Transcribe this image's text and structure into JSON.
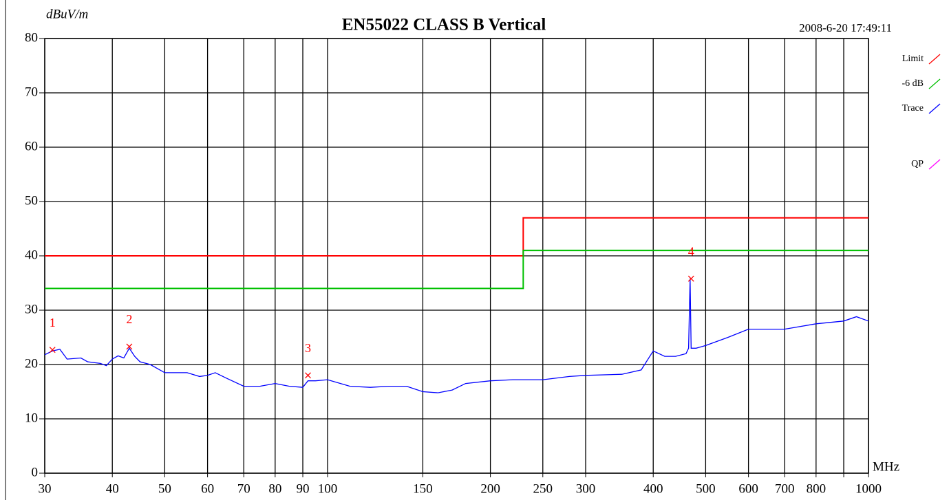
{
  "chart_data": {
    "type": "line",
    "title": "EN55022 CLASS B  Vertical",
    "y_label": "dBuV/m",
    "x_label": "MHz",
    "timestamp": "2008-6-20 17:49:11",
    "x_scale": "log",
    "grid": true,
    "xlim": [
      30,
      1000
    ],
    "ylim": [
      0,
      80
    ],
    "yticks": [
      0,
      10,
      20,
      30,
      40,
      50,
      60,
      70,
      80
    ],
    "xticks": [
      30,
      40,
      50,
      60,
      70,
      80,
      90,
      100,
      150,
      200,
      250,
      300,
      400,
      500,
      600,
      700,
      800,
      {
        "value": 900,
        "label": null
      },
      1000
    ],
    "series": [
      {
        "name": "Limit",
        "color": "#ff0000",
        "x": [
          30,
          230,
          230,
          1000
        ],
        "values": [
          40,
          40,
          47,
          47
        ]
      },
      {
        "name": "-6 dB",
        "color": "#00c000",
        "x": [
          30,
          230,
          230,
          1000
        ],
        "values": [
          34,
          34,
          41,
          41
        ]
      },
      {
        "name": "Trace",
        "color": "#0000ff",
        "x": [
          30,
          31,
          32,
          33,
          35,
          36,
          38,
          39,
          40,
          41,
          42,
          43,
          44,
          45,
          47,
          50,
          55,
          58,
          60,
          62,
          65,
          70,
          75,
          80,
          85,
          90,
          92,
          95,
          100,
          110,
          120,
          130,
          140,
          150,
          160,
          170,
          180,
          200,
          220,
          250,
          280,
          300,
          350,
          380,
          400,
          420,
          440,
          460,
          465,
          468,
          470,
          480,
          500,
          550,
          600,
          700,
          800,
          900,
          950,
          1000
        ],
        "values": [
          21.8,
          22.5,
          22.8,
          21,
          21.2,
          20.5,
          20.2,
          19.8,
          21,
          21.6,
          21.2,
          23,
          21.5,
          20.5,
          20,
          18.5,
          18.5,
          17.8,
          18,
          18.5,
          17.5,
          16,
          16,
          16.5,
          16,
          15.8,
          17,
          17,
          17.2,
          16,
          15.8,
          16,
          16,
          15,
          14.8,
          15.3,
          16.5,
          17,
          17.2,
          17.2,
          17.8,
          18,
          18.2,
          19,
          22.5,
          21.5,
          21.5,
          22,
          23,
          35.8,
          23,
          23,
          23.5,
          25,
          26.5,
          26.5,
          27.5,
          28,
          28.8,
          28
        ]
      },
      {
        "name": "QP",
        "color": "#ff00ff",
        "x": [],
        "values": []
      }
    ],
    "markers": [
      {
        "label": "1",
        "x": 31,
        "y": 22.7
      },
      {
        "label": "2",
        "x": 43,
        "y": 23.3
      },
      {
        "label": "3",
        "x": 92,
        "y": 18
      },
      {
        "label": "4",
        "x": 470,
        "y": 35.8
      }
    ]
  }
}
